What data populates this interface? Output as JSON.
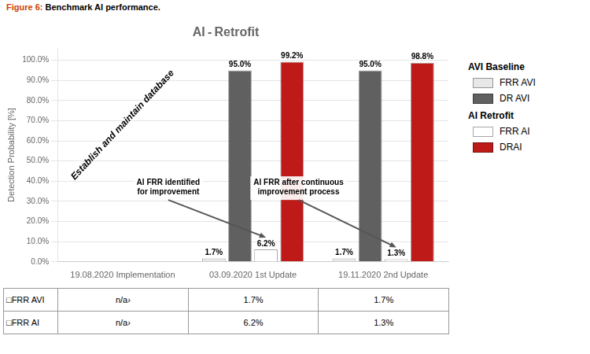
{
  "chart_data": {
    "type": "bar",
    "title": "AI - Retrofit",
    "figure_label": {
      "text": "Figure 6:",
      "color": "#cc4400"
    },
    "figure_caption": " Benchmark AI performance.",
    "ylabel": "Detection Probability [%]",
    "categories": [
      "19.08.2020 Implementation",
      "03.09.2020 1st Update",
      "19.11.2020 2nd Update"
    ],
    "series": [
      {
        "name": "FRR AVI",
        "group": "AVI Baseline",
        "color": "#e8e8e8",
        "values": [
          null,
          1.7,
          1.7
        ],
        "value_labels": [
          null,
          "1.7%",
          "1.7%"
        ]
      },
      {
        "name": "DR AVI",
        "group": "AVI Baseline",
        "color": "#606060",
        "values": [
          null,
          95.0,
          95.0
        ],
        "value_labels": [
          null,
          "95.0%",
          "95.0%"
        ]
      },
      {
        "name": "FRR AI",
        "group": "AI Retrofit",
        "color": "#ffffff",
        "values": [
          null,
          6.2,
          1.3
        ],
        "value_labels": [
          null,
          "6.2%",
          "1.3%"
        ]
      },
      {
        "name": "DRAI",
        "group": "AI Retrofit",
        "color": "#be1a18",
        "values": [
          null,
          99.2,
          98.8
        ],
        "value_labels": [
          null,
          "99.2%",
          "98.8%"
        ]
      }
    ],
    "ylim": [
      0,
      106
    ],
    "yticks": [
      {
        "value": 0,
        "label": "0.0%"
      },
      {
        "value": 10,
        "label": "10.0%"
      },
      {
        "value": 20,
        "label": "20.0%"
      },
      {
        "value": 30,
        "label": "30.0%"
      },
      {
        "value": 40,
        "label": "40.0%"
      },
      {
        "value": 50,
        "label": "50.0%"
      },
      {
        "value": 60,
        "label": "60.0%"
      },
      {
        "value": 70,
        "label": "70.0%"
      },
      {
        "value": 80,
        "label": "80.0%"
      },
      {
        "value": 90,
        "label": "90.0%"
      },
      {
        "value": 100,
        "label": "100.0%"
      }
    ],
    "grid": true,
    "data_labels": true,
    "legend": "right",
    "annotations": [
      {
        "text": "AI FRR identified\nfor improvement",
        "series": "FRR AI",
        "category": "03.09.2020 1st Update"
      },
      {
        "text": "AI FRR after continuous\nimprovement process",
        "series": "FRR AI",
        "category": "19.11.2020 2nd Update"
      },
      {
        "text": "Establish and maintain database"
      }
    ],
    "table": {
      "row_labels": [
        "□FRR AVI",
        "□FRR AI"
      ],
      "rows": [
        [
          "n/a›",
          "1.7%",
          "1.7%"
        ],
        [
          "n/a›",
          "6.2%",
          "1.3%"
        ]
      ]
    }
  }
}
